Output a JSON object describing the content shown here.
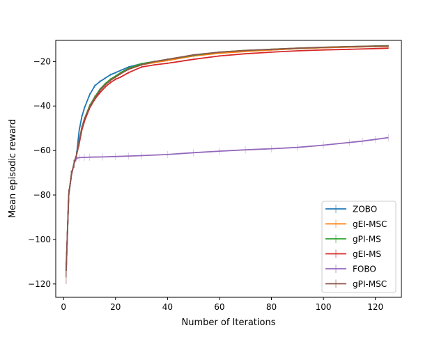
{
  "chart_data": {
    "type": "line",
    "title": "",
    "xlabel": "Number of Iterations",
    "ylabel": "Mean episodic reward",
    "xlim": [
      -3,
      130
    ],
    "ylim": [
      -126,
      -10.5
    ],
    "xticks": [
      0,
      20,
      40,
      60,
      80,
      100,
      120
    ],
    "yticks": [
      -120,
      -100,
      -80,
      -60,
      -40,
      -20
    ],
    "grid": false,
    "legend_position": "lower-right",
    "error_bars": true,
    "series": [
      {
        "name": "ZOBO",
        "color": "#1f77b4",
        "x": [
          1,
          2,
          3,
          4,
          5,
          6,
          7,
          8,
          10,
          12,
          14,
          16,
          18,
          20,
          22,
          25,
          30,
          35,
          40,
          50,
          60,
          70,
          80,
          90,
          100,
          110,
          120,
          125
        ],
        "y": [
          -114,
          -80,
          -71,
          -66,
          -62,
          -51,
          -45,
          -41,
          -35,
          -31,
          -29,
          -27.5,
          -26,
          -25,
          -24,
          -22.5,
          -21,
          -20,
          -19.5,
          -17.5,
          -16,
          -15.3,
          -14.8,
          -14.2,
          -13.8,
          -13.5,
          -13.3,
          -13.2
        ],
        "err": [
          3,
          2.5,
          2,
          1.8,
          1.6,
          1.4,
          1.2,
          1.0,
          0.9,
          0.8,
          0.7,
          0.6,
          0.6,
          0.5,
          0.5,
          0.5,
          0.5,
          0.4,
          0.4,
          0.4,
          0.4,
          0.3,
          0.3,
          0.3,
          0.3,
          0.3,
          0.3,
          0.3
        ]
      },
      {
        "name": "gEI-MSC",
        "color": "#ff7f0e",
        "x": [
          1,
          2,
          3,
          4,
          5,
          6,
          7,
          8,
          10,
          12,
          14,
          16,
          18,
          20,
          22,
          25,
          30,
          35,
          40,
          50,
          60,
          70,
          80,
          90,
          100,
          110,
          120,
          125
        ],
        "y": [
          -114,
          -80,
          -71,
          -66,
          -62,
          -56,
          -50,
          -46,
          -40,
          -36,
          -33,
          -30.5,
          -28.5,
          -27,
          -25.5,
          -23.5,
          -21.5,
          -20.5,
          -19.5,
          -17.5,
          -16.3,
          -15.5,
          -14.8,
          -14.2,
          -13.8,
          -13.5,
          -13.3,
          -13.2
        ],
        "err": [
          3,
          2.5,
          2,
          1.8,
          1.6,
          1.4,
          1.2,
          1.0,
          0.9,
          0.8,
          0.7,
          0.6,
          0.6,
          0.5,
          0.5,
          0.5,
          0.5,
          0.4,
          0.4,
          0.4,
          0.4,
          0.3,
          0.3,
          0.3,
          0.3,
          0.3,
          0.3,
          0.3
        ]
      },
      {
        "name": "gPI-MS",
        "color": "#2ca02c",
        "x": [
          1,
          2,
          3,
          4,
          5,
          6,
          7,
          8,
          10,
          12,
          14,
          16,
          18,
          20,
          22,
          25,
          30,
          35,
          40,
          50,
          60,
          70,
          80,
          90,
          100,
          110,
          120,
          125
        ],
        "y": [
          -114,
          -80,
          -71,
          -66,
          -62,
          -56,
          -50,
          -46,
          -40,
          -36,
          -32.5,
          -30,
          -28,
          -26.5,
          -25,
          -23,
          -21,
          -20,
          -19,
          -17.2,
          -15.8,
          -15,
          -14.5,
          -14,
          -13.6,
          -13.3,
          -13,
          -12.9
        ],
        "err": [
          3,
          2.5,
          2,
          1.8,
          1.6,
          1.4,
          1.2,
          1.0,
          0.9,
          0.8,
          0.7,
          0.6,
          0.6,
          0.5,
          0.5,
          0.5,
          0.5,
          0.4,
          0.4,
          0.4,
          0.4,
          0.3,
          0.3,
          0.3,
          0.3,
          0.3,
          0.3,
          0.3
        ]
      },
      {
        "name": "gEI-MS",
        "color": "#d62728",
        "x": [
          1,
          2,
          3,
          4,
          5,
          6,
          7,
          8,
          10,
          12,
          14,
          16,
          18,
          20,
          22,
          25,
          30,
          35,
          40,
          50,
          60,
          70,
          80,
          90,
          100,
          110,
          120,
          125
        ],
        "y": [
          -114,
          -80,
          -71,
          -66,
          -62,
          -57,
          -51,
          -47,
          -41,
          -37,
          -34,
          -31.5,
          -29.5,
          -28,
          -27,
          -25,
          -22.5,
          -21.5,
          -20.8,
          -19,
          -17.5,
          -16.5,
          -15.8,
          -15.2,
          -14.8,
          -14.5,
          -14.2,
          -14
        ],
        "err": [
          3,
          2.5,
          2,
          1.8,
          1.6,
          1.4,
          1.2,
          1.0,
          0.9,
          0.8,
          0.7,
          0.6,
          0.6,
          0.5,
          0.5,
          0.5,
          0.5,
          0.4,
          0.4,
          0.4,
          0.4,
          0.3,
          0.3,
          0.3,
          0.3,
          0.3,
          0.3,
          0.3
        ]
      },
      {
        "name": "FOBO",
        "color": "#9467bd",
        "x": [
          1,
          2,
          3,
          4,
          5,
          6,
          8,
          10,
          15,
          20,
          25,
          30,
          40,
          50,
          60,
          70,
          80,
          90,
          100,
          110,
          115,
          120,
          125
        ],
        "y": [
          -114,
          -80,
          -71,
          -66,
          -63.5,
          -63.2,
          -63.1,
          -63,
          -62.9,
          -62.7,
          -62.5,
          -62.3,
          -61.8,
          -61,
          -60.3,
          -59.7,
          -59.2,
          -58.6,
          -57.6,
          -56.4,
          -55.8,
          -55,
          -54.2
        ],
        "err": [
          3,
          2.5,
          2,
          1.8,
          1.6,
          1.6,
          1.6,
          1.6,
          1.6,
          1.6,
          1.6,
          1.6,
          1.6,
          1.6,
          1.6,
          1.6,
          1.6,
          1.6,
          1.6,
          1.6,
          1.6,
          1.6,
          1.7
        ]
      },
      {
        "name": "gPI-MSC",
        "color": "#8c564b",
        "x": [
          1,
          2,
          3,
          4,
          5,
          6,
          7,
          8,
          10,
          12,
          14,
          16,
          18,
          20,
          22,
          25,
          30,
          35,
          40,
          50,
          60,
          70,
          80,
          90,
          100,
          110,
          120,
          125
        ],
        "y": [
          -114,
          -80,
          -71,
          -66,
          -62,
          -56,
          -50,
          -46,
          -40.5,
          -36.5,
          -33,
          -30.5,
          -28.5,
          -27,
          -25.5,
          -23.5,
          -21.5,
          -20,
          -19,
          -17,
          -15.8,
          -15,
          -14.5,
          -14,
          -13.6,
          -13.3,
          -13.1,
          -13
        ],
        "err": [
          6,
          2.5,
          2,
          1.8,
          1.6,
          1.4,
          1.2,
          1.0,
          0.9,
          0.8,
          0.7,
          0.6,
          0.6,
          0.5,
          0.5,
          0.5,
          0.5,
          0.4,
          0.4,
          0.4,
          0.4,
          0.3,
          0.3,
          0.3,
          0.3,
          0.3,
          0.3,
          0.3
        ]
      }
    ]
  }
}
